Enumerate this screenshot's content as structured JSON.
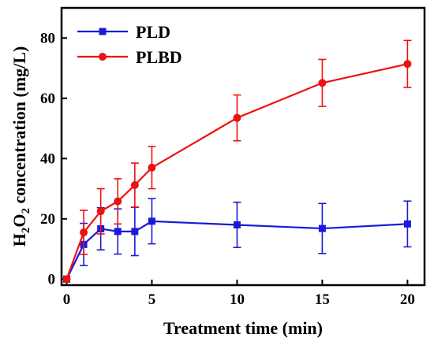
{
  "chart_data": {
    "type": "line",
    "title": "",
    "xlabel": "Treatment time (min)",
    "ylabel": {
      "parts": [
        {
          "text": "H",
          "sub": false
        },
        {
          "text": "2",
          "sub": true
        },
        {
          "text": "O",
          "sub": false
        },
        {
          "text": "2",
          "sub": true
        },
        {
          "text": " concentration (mg/L)",
          "sub": false
        }
      ]
    },
    "xlim": [
      -0.3,
      21
    ],
    "ylim": [
      -2,
      90
    ],
    "xticks": [
      0,
      5,
      10,
      15,
      20
    ],
    "yticks": [
      0,
      20,
      40,
      60,
      80
    ],
    "grid": false,
    "legend_position": "top-left",
    "series": [
      {
        "name": "PLD",
        "color": "#1a1adb",
        "marker": "square",
        "x": [
          0,
          1,
          2,
          3,
          4,
          5,
          10,
          15,
          20
        ],
        "y": [
          0,
          11.5,
          16.7,
          15.8,
          15.8,
          19.2,
          18.0,
          16.8,
          18.3
        ],
        "err": [
          0,
          7,
          7,
          7.5,
          8,
          7.5,
          7.5,
          8.3,
          7.6
        ]
      },
      {
        "name": "PLBD",
        "color": "#ee1111",
        "marker": "circle",
        "x": [
          0,
          1,
          2,
          3,
          4,
          5,
          10,
          15,
          20
        ],
        "y": [
          0,
          15.5,
          22.5,
          25.8,
          31.2,
          37.0,
          53.5,
          65.1,
          71.4
        ],
        "err": [
          0,
          7.3,
          7.5,
          7.5,
          7.3,
          7.0,
          7.6,
          7.8,
          7.8
        ]
      }
    ]
  }
}
